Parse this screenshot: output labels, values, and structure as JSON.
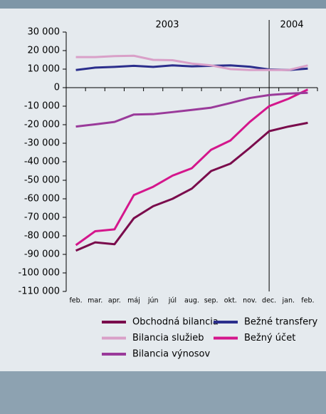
{
  "chart_data": {
    "type": "line",
    "annotations": [
      "2003",
      "2004"
    ],
    "categories": [
      "feb.",
      "mar.",
      "apr.",
      "máj",
      "jún",
      "júl",
      "aug.",
      "sep.",
      "okt.",
      "nov.",
      "dec.",
      "jan.",
      "feb."
    ],
    "series": [
      {
        "name": "Obchodná bilancia",
        "color": "#7a0c4c",
        "values": [
          -88000,
          -83500,
          -84500,
          -70500,
          -64000,
          -60000,
          -54500,
          -45000,
          -41000,
          -32500,
          -23500,
          -21000,
          -19000
        ]
      },
      {
        "name": "Bežné transfery",
        "color": "#2b2e8c",
        "values": [
          9500,
          10800,
          11200,
          11800,
          11200,
          12000,
          11500,
          11800,
          12000,
          11300,
          9800,
          9500,
          10300
        ]
      },
      {
        "name": "Bilancia služieb",
        "color": "#d9a0c8",
        "values": [
          16500,
          16500,
          17000,
          17200,
          15000,
          14800,
          13000,
          12000,
          10000,
          9500,
          9500,
          9500,
          12000
        ]
      },
      {
        "name": "Bežný účet",
        "color": "#d4168c",
        "values": [
          -85000,
          -77500,
          -76500,
          -58000,
          -53500,
          -47500,
          -43500,
          -33500,
          -28500,
          -18500,
          -10000,
          -6000,
          -1000
        ]
      },
      {
        "name": "Bilancia výnosov",
        "color": "#9a3a9a",
        "values": [
          -21000,
          -19800,
          -18500,
          -14500,
          -14300,
          -13200,
          -12000,
          -10800,
          -8300,
          -5600,
          -4000,
          -3200,
          -2800
        ]
      }
    ],
    "ylim": [
      -110000,
      30000
    ],
    "yticks": [
      {
        "value": -110000,
        "label": "-110 000"
      },
      {
        "value": -100000,
        "label": "-100 000"
      },
      {
        "value": -90000,
        "label": "-90 000"
      },
      {
        "value": -80000,
        "label": "-80 000"
      },
      {
        "value": -70000,
        "label": "-70 000"
      },
      {
        "value": -60000,
        "label": "-60 000"
      },
      {
        "value": -50000,
        "label": "-50 000"
      },
      {
        "value": -40000,
        "label": "-40 000"
      },
      {
        "value": -30000,
        "label": "-30 000"
      },
      {
        "value": -20000,
        "label": "-20 000"
      },
      {
        "value": -10000,
        "label": "-10 000"
      },
      0,
      {
        "value": 10000,
        "label": "10 000"
      },
      {
        "value": 20000,
        "label": "20 000"
      },
      {
        "value": 30000,
        "label": "30 000"
      }
    ],
    "grid": false
  }
}
